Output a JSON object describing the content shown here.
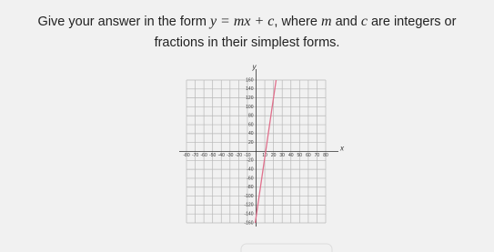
{
  "question": {
    "line1": [
      "Give your answer in the form",
      "y = mx + c",
      ", where",
      "m",
      "and",
      "c",
      "are integers or"
    ],
    "line2": "fractions in their simplest forms."
  },
  "chart_data": {
    "type": "line",
    "x_label": "x",
    "y_label": "y",
    "x": [
      -1,
      23
    ],
    "series": [
      {
        "color": "#e0708c",
        "values": [
          -160,
          160
        ]
      }
    ],
    "xlim": [
      -80,
      80
    ],
    "ylim": [
      -160,
      160
    ],
    "xticks": [
      -80,
      -70,
      -60,
      -50,
      -40,
      -30,
      -20,
      -10,
      10,
      20,
      30,
      40,
      50,
      60,
      70,
      80
    ],
    "yticks": [
      -160,
      -140,
      -120,
      -100,
      -80,
      -60,
      -40,
      -20,
      20,
      40,
      60,
      80,
      100,
      120,
      140,
      160
    ],
    "grid": true
  }
}
